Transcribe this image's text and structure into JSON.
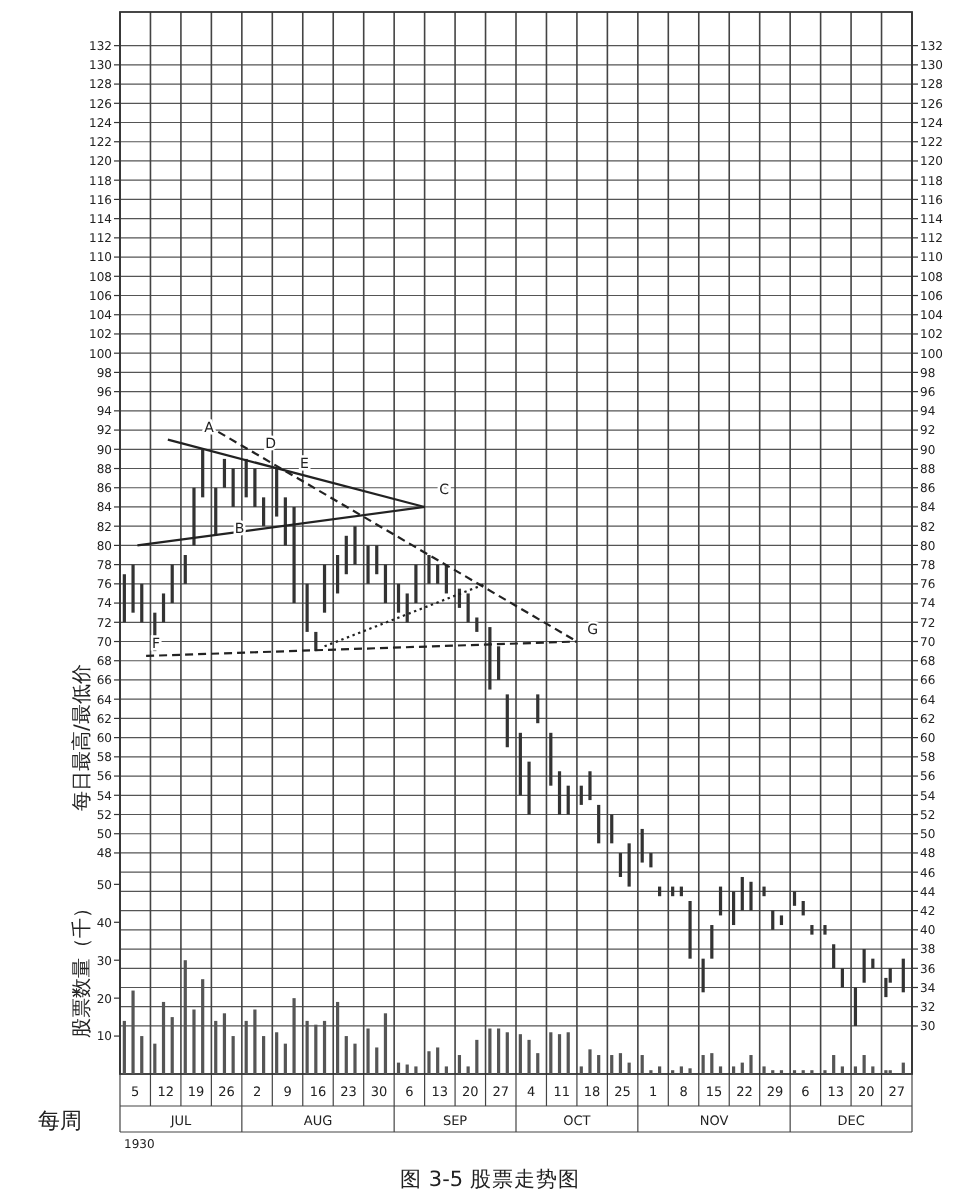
{
  "chart_data": {
    "type": "bar",
    "title": "图 3-5 股票走势图",
    "xlabel": "每周",
    "ylabel": "每日最高/最低价",
    "y3label": "股票数量（千）",
    "annotations": [
      "1930",
      {
        "text": "A",
        "x": "1930-07-18",
        "y": 91
      },
      {
        "text": "B",
        "x": "1930-07-25",
        "y": 80.5
      },
      {
        "text": "C",
        "x": "1930-09-10",
        "y": 84.5
      },
      {
        "text": "D",
        "x": "1930-08-01",
        "y": 89.3
      },
      {
        "text": "E",
        "x": "1930-08-09",
        "y": 87.2
      },
      {
        "text": "F",
        "x": "1930-07-06",
        "y": 68.5
      },
      {
        "text": "G",
        "x": "1930-10-14",
        "y": 70
      }
    ],
    "xlim": [
      "1930-06-30",
      "1930-12-29"
    ],
    "xticks": [
      {
        "value": "1930-06-30",
        "label": null
      },
      {
        "value": "1930-07-07",
        "label": null
      },
      {
        "value": "1930-07-14",
        "label": null
      },
      {
        "value": "1930-07-21",
        "label": null
      },
      {
        "value": "1930-07-28",
        "label": null
      },
      {
        "value": "1930-08-04",
        "label": null
      },
      {
        "value": "1930-08-11",
        "label": null
      },
      {
        "value": "1930-08-18",
        "label": null
      },
      {
        "value": "1930-08-25",
        "label": null
      },
      {
        "value": "1930-09-01",
        "label": null
      },
      {
        "value": "1930-09-08",
        "label": null
      },
      {
        "value": "1930-09-15",
        "label": null
      },
      {
        "value": "1930-09-22",
        "label": null
      },
      {
        "value": "1930-09-29",
        "label": null
      },
      {
        "value": "1930-10-06",
        "label": null
      },
      {
        "value": "1930-10-13",
        "label": null
      },
      {
        "value": "1930-10-20",
        "label": null
      },
      {
        "value": "1930-10-27",
        "label": null
      },
      {
        "value": "1930-11-03",
        "label": null
      },
      {
        "value": "1930-11-10",
        "label": null
      },
      {
        "value": "1930-11-17",
        "label": null
      },
      {
        "value": "1930-11-24",
        "label": null
      },
      {
        "value": "1930-12-01",
        "label": null
      },
      {
        "value": "1930-12-08",
        "label": null
      },
      {
        "value": "1930-12-15",
        "label": null
      },
      {
        "value": "1930-12-22",
        "label": null
      },
      {
        "value": "1930-12-29",
        "label": null
      },
      {
        "value": "1930-07-03T12:00",
        "label": "5"
      },
      {
        "value": "1930-07-10T12:00",
        "label": "12"
      },
      {
        "value": "1930-07-17T12:00",
        "label": "19"
      },
      {
        "value": "1930-07-24T12:00",
        "label": "26"
      },
      {
        "value": "1930-07-31T12:00",
        "label": "2"
      },
      {
        "value": "1930-08-07T12:00",
        "label": "9"
      },
      {
        "value": "1930-08-14T12:00",
        "label": "16"
      },
      {
        "value": "1930-08-21T12:00",
        "label": "23"
      },
      {
        "value": "1930-08-28T12:00",
        "label": "30"
      },
      {
        "value": "1930-09-04T12:00",
        "label": "6"
      },
      {
        "value": "1930-09-11T12:00",
        "label": "13"
      },
      {
        "value": "1930-09-18T12:00",
        "label": "20"
      },
      {
        "value": "1930-09-25T12:00",
        "label": "27"
      },
      {
        "value": "1930-10-02T12:00",
        "label": "4"
      },
      {
        "value": "1930-10-09T12:00",
        "label": "11"
      },
      {
        "value": "1930-10-16T12:00",
        "label": "18"
      },
      {
        "value": "1930-10-23T12:00",
        "label": "25"
      },
      {
        "value": "1930-10-30T12:00",
        "label": "1"
      },
      {
        "value": "1930-11-06T12:00",
        "label": "8"
      },
      {
        "value": "1930-11-13T12:00",
        "label": "15"
      },
      {
        "value": "1930-11-20T12:00",
        "label": "22"
      },
      {
        "value": "1930-11-27T12:00",
        "label": "29"
      },
      {
        "value": "1930-12-04T12:00",
        "label": "6"
      },
      {
        "value": "1930-12-11T12:00",
        "label": "13"
      },
      {
        "value": "1930-12-18T12:00",
        "label": "20"
      },
      {
        "value": "1930-12-25T12:00",
        "label": "27"
      }
    ],
    "x2lim": [
      "1930-06-30",
      "1930-12-29"
    ],
    "x2ticks": [
      {
        "value": "1930-06-30",
        "label": null
      },
      {
        "value": "1930-07-28",
        "label": null
      },
      {
        "value": "1930-09-01",
        "label": null
      },
      {
        "value": "1930-09-29",
        "label": null
      },
      {
        "value": "1930-10-27",
        "label": null
      },
      {
        "value": "1930-12-01",
        "label": null
      },
      {
        "value": "1930-12-29",
        "label": null
      },
      {
        "value": "1930-07-14",
        "label": "JUL"
      },
      {
        "value": "1930-08-14T12:00",
        "label": "AUG"
      },
      {
        "value": "1930-09-15",
        "label": "SEP"
      },
      {
        "value": "1930-10-13",
        "label": "OCT"
      },
      {
        "value": "1930-11-13T12:00",
        "label": "NOV"
      },
      {
        "value": "1930-12-15",
        "label": "DEC"
      }
    ],
    "ylim": [
      25,
      135.5
    ],
    "yticks": [
      48,
      50,
      52,
      54,
      56,
      58,
      60,
      62,
      64,
      66,
      68,
      70,
      72,
      74,
      76,
      78,
      80,
      82,
      84,
      86,
      88,
      90,
      92,
      94,
      96,
      98,
      100,
      102,
      104,
      106,
      108,
      110,
      112,
      114,
      116,
      118,
      120,
      122,
      124,
      126,
      128,
      130,
      132
    ],
    "y2lim": [
      25,
      135.5
    ],
    "y2ticks": [
      30,
      32,
      34,
      36,
      38,
      40,
      42,
      44,
      46,
      48,
      50,
      52,
      54,
      56,
      58,
      60,
      62,
      64,
      66,
      68,
      70,
      72,
      74,
      76,
      78,
      80,
      82,
      84,
      86,
      88,
      90,
      92,
      94,
      96,
      98,
      100,
      102,
      104,
      106,
      108,
      110,
      112,
      114,
      116,
      118,
      120,
      122,
      124,
      126,
      128,
      130,
      132
    ],
    "y3lim": [
      0,
      280
    ],
    "y3ticks": [
      10,
      20,
      30,
      40,
      50
    ],
    "grid": true,
    "series": [
      {
        "axis": "y",
        "color": "#333333",
        "x": [
          "1930-07-01",
          "1930-07-03",
          "1930-07-05",
          "1930-07-08",
          "1930-07-10",
          "1930-07-12",
          "1930-07-15",
          "1930-07-17",
          "1930-07-19",
          "1930-07-22",
          "1930-07-24",
          "1930-07-26",
          "1930-07-29",
          "1930-07-31",
          "1930-08-02",
          "1930-08-05",
          "1930-08-07",
          "1930-08-09",
          "1930-08-12",
          "1930-08-14",
          "1930-08-16",
          "1930-08-19",
          "1930-08-21",
          "1930-08-23",
          "1930-08-26",
          "1930-08-28",
          "1930-08-30",
          "1930-09-02",
          "1930-09-04",
          "1930-09-06",
          "1930-09-09",
          "1930-09-11",
          "1930-09-13",
          "1930-09-16",
          "1930-09-18",
          "1930-09-20",
          "1930-09-23",
          "1930-09-25",
          "1930-09-27",
          "1930-09-30",
          "1930-10-02",
          "1930-10-04",
          "1930-10-07",
          "1930-10-09",
          "1930-10-11",
          "1930-10-14",
          "1930-10-16",
          "1930-10-18",
          "1930-10-21",
          "1930-10-23",
          "1930-10-25",
          "1930-10-28",
          "1930-10-30",
          "1930-11-01",
          "1930-11-04",
          "1930-11-06",
          "1930-11-08",
          "1930-11-11",
          "1930-11-13",
          "1930-11-15",
          "1930-11-18",
          "1930-11-20",
          "1930-11-22",
          "1930-11-25",
          "1930-11-27",
          "1930-11-29",
          "1930-12-02",
          "1930-12-04",
          "1930-12-06",
          "1930-12-09",
          "1930-12-11",
          "1930-12-13",
          "1930-12-16",
          "1930-12-18",
          "1930-12-20",
          "1930-12-23",
          "1930-12-24",
          "1930-12-27"
        ],
        "base": [
          72,
          73,
          72,
          69,
          72,
          74,
          76,
          80,
          85,
          81,
          86,
          84,
          85,
          84,
          82,
          83,
          80,
          74,
          71,
          69,
          73,
          75,
          77,
          78,
          76,
          77,
          74,
          73,
          72,
          74,
          76,
          76,
          75,
          73.5,
          72,
          71,
          65,
          66,
          59,
          54,
          52,
          61.5,
          55,
          52,
          52,
          53,
          53.5,
          49,
          49,
          45.5,
          44.5,
          47,
          46.5,
          43.5,
          43.5,
          43.5,
          37,
          33.5,
          37,
          41.5,
          40.5,
          42,
          42,
          43.5,
          40,
          40.5,
          42.5,
          41.5,
          39.5,
          39.5,
          36,
          34,
          30,
          34.5,
          36,
          33,
          34.5,
          33.5
        ],
        "values": [
          5,
          5,
          4,
          4,
          3,
          4,
          3,
          6,
          5,
          5,
          3,
          4,
          4,
          4,
          3,
          5,
          5,
          10,
          5,
          2,
          5,
          4,
          4,
          4,
          4,
          3,
          4,
          3,
          3,
          4,
          3,
          2,
          3,
          2,
          3,
          1.5,
          6.5,
          3.5,
          5.5,
          6.5,
          5.5,
          3,
          5.5,
          4.5,
          3,
          2,
          3,
          4,
          3,
          2.5,
          4.5,
          3.5,
          1.5,
          1,
          1,
          1,
          6,
          3.5,
          3.5,
          3,
          3.5,
          3.5,
          3,
          1,
          2,
          1,
          1.5,
          1.5,
          1,
          1,
          2.5,
          2,
          4,
          3.5,
          1,
          2,
          1.5,
          3.5
        ]
      },
      {
        "axis": "y3",
        "color": "#555555",
        "x": [
          "1930-07-01",
          "1930-07-03",
          "1930-07-05",
          "1930-07-08",
          "1930-07-10",
          "1930-07-12",
          "1930-07-15",
          "1930-07-17",
          "1930-07-19",
          "1930-07-22",
          "1930-07-24",
          "1930-07-26",
          "1930-07-29",
          "1930-07-31",
          "1930-08-02",
          "1930-08-05",
          "1930-08-07",
          "1930-08-09",
          "1930-08-12",
          "1930-08-14",
          "1930-08-16",
          "1930-08-19",
          "1930-08-21",
          "1930-08-23",
          "1930-08-26",
          "1930-08-28",
          "1930-08-30",
          "1930-09-02",
          "1930-09-04",
          "1930-09-06",
          "1930-09-09",
          "1930-09-11",
          "1930-09-13",
          "1930-09-16",
          "1930-09-18",
          "1930-09-20",
          "1930-09-23",
          "1930-09-25",
          "1930-09-27",
          "1930-09-30",
          "1930-10-02",
          "1930-10-04",
          "1930-10-07",
          "1930-10-09",
          "1930-10-11",
          "1930-10-14",
          "1930-10-16",
          "1930-10-18",
          "1930-10-21",
          "1930-10-23",
          "1930-10-25",
          "1930-10-28",
          "1930-10-30",
          "1930-11-01",
          "1930-11-04",
          "1930-11-06",
          "1930-11-08",
          "1930-11-11",
          "1930-11-13",
          "1930-11-15",
          "1930-11-18",
          "1930-11-20",
          "1930-11-22",
          "1930-11-25",
          "1930-11-27",
          "1930-11-29",
          "1930-12-02",
          "1930-12-04",
          "1930-12-06",
          "1930-12-09",
          "1930-12-11",
          "1930-12-13",
          "1930-12-16",
          "1930-12-18",
          "1930-12-20",
          "1930-12-23",
          "1930-12-24",
          "1930-12-27"
        ],
        "values": [
          14,
          22,
          10,
          8,
          19,
          15,
          30,
          17,
          25,
          14,
          16,
          10,
          14,
          17,
          10,
          11,
          8,
          20,
          14,
          13,
          14,
          19,
          10,
          8,
          12,
          7,
          16,
          3,
          2.5,
          2,
          6,
          7,
          2,
          5,
          2,
          9,
          12,
          12,
          11,
          10.5,
          9,
          5.5,
          11,
          10.5,
          11,
          2,
          6.5,
          5,
          5,
          5.5,
          3,
          5,
          1,
          2,
          1,
          2,
          1.5,
          5,
          5.5,
          2,
          2,
          3,
          5,
          2,
          1,
          1,
          1,
          1,
          1,
          1,
          5,
          2,
          2,
          5,
          2,
          1,
          1,
          3
        ]
      },
      {
        "type": "line",
        "axis": "y",
        "color": "#222222",
        "line_style": "solid",
        "x": [
          "1930-07-11",
          "1930-09-08"
        ],
        "values": [
          91,
          84
        ]
      },
      {
        "type": "line",
        "axis": "y",
        "color": "#222222",
        "line_style": "solid",
        "x": [
          "1930-07-04",
          "1930-09-08"
        ],
        "values": [
          80,
          84
        ]
      },
      {
        "type": "line",
        "axis": "y",
        "color": "#222222",
        "line_style": "dashed",
        "x": [
          "1930-07-20",
          "1930-10-13"
        ],
        "values": [
          92.5,
          70
        ]
      },
      {
        "type": "line",
        "axis": "y",
        "color": "#222222",
        "line_style": "dashed",
        "x": [
          "1930-07-06",
          "1930-10-13"
        ],
        "values": [
          68.5,
          70
        ]
      },
      {
        "type": "line",
        "axis": "y",
        "color": "#222222",
        "line_style": "dotted",
        "x": [
          "1930-08-16",
          "1930-09-22"
        ],
        "values": [
          69.5,
          76
        ]
      }
    ]
  }
}
